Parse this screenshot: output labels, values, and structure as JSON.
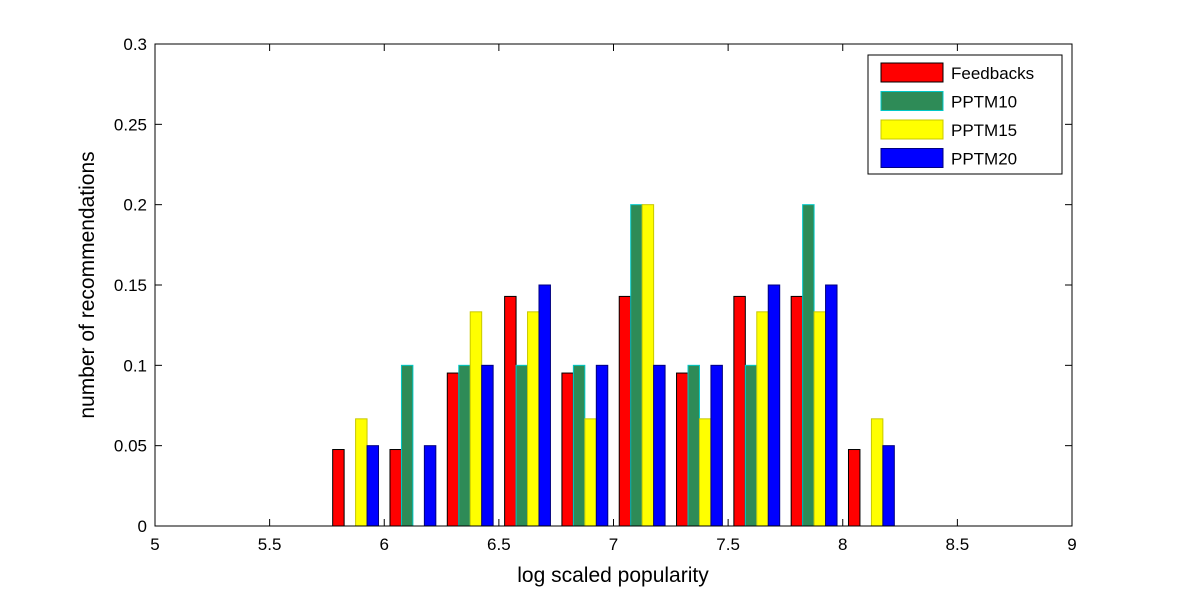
{
  "chart_data": {
    "type": "bar",
    "xlabel": "log scaled popularity",
    "ylabel": "number of recommendations",
    "xlim": [
      5,
      9
    ],
    "ylim": [
      0,
      0.3
    ],
    "xticks": [
      "5",
      "5.5",
      "6",
      "6.5",
      "7",
      "7.5",
      "8",
      "8.5",
      "9"
    ],
    "yticks": [
      "0",
      "0.05",
      "0.1",
      "0.15",
      "0.2",
      "0.25",
      "0.3"
    ],
    "grid": false,
    "legend_position": "top-right",
    "bin_centers": [
      5.125,
      5.375,
      5.625,
      5.875,
      6.125,
      6.375,
      6.625,
      6.875,
      7.125,
      7.375,
      7.625,
      7.875,
      8.125,
      8.375,
      8.625,
      8.875
    ],
    "series": [
      {
        "name": "Feedbacks",
        "color": "#ff0000",
        "edge": "#000000",
        "values": [
          0,
          0,
          0,
          0.0476,
          0.0476,
          0.0952,
          0.1429,
          0.0952,
          0.1429,
          0.0952,
          0.1429,
          0.1429,
          0.0476,
          0,
          0,
          0
        ]
      },
      {
        "name": "PPTM10",
        "color": "#2e8b57",
        "edge": "#00c8c8",
        "values": [
          0,
          0,
          0,
          0,
          0.1,
          0.1,
          0.1,
          0.1,
          0.2,
          0.1,
          0.1,
          0.2,
          0,
          0,
          0,
          0
        ]
      },
      {
        "name": "PPTM15",
        "color": "#ffff00",
        "edge": "#c8c800",
        "values": [
          0,
          0,
          0,
          0.0667,
          0,
          0.1333,
          0.1333,
          0.0667,
          0.2,
          0.0667,
          0.1333,
          0.1333,
          0.0667,
          0,
          0,
          0
        ]
      },
      {
        "name": "PPTM20",
        "color": "#0000ff",
        "edge": "#000080",
        "values": [
          0,
          0,
          0,
          0.05,
          0.05,
          0.1,
          0.15,
          0.1,
          0.1,
          0.1,
          0.15,
          0.15,
          0.05,
          0,
          0,
          0
        ]
      }
    ]
  }
}
